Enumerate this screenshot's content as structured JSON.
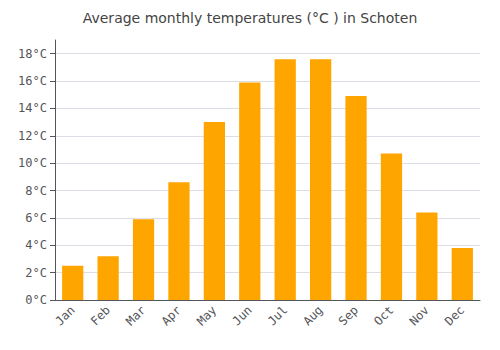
{
  "chart_data": {
    "type": "bar",
    "title": "Average monthly temperatures (°C ) in Schoten",
    "categories": [
      "Jan",
      "Feb",
      "Mar",
      "Apr",
      "May",
      "Jun",
      "Jul",
      "Aug",
      "Sep",
      "Oct",
      "Nov",
      "Dec"
    ],
    "values": [
      2.5,
      3.2,
      5.9,
      8.6,
      13.0,
      15.9,
      17.6,
      17.6,
      14.9,
      10.7,
      6.4,
      3.8
    ],
    "color": "#FFA500",
    "ylim": [
      0,
      19
    ],
    "yticks": [
      {
        "value": 0,
        "label": "0°C"
      },
      {
        "value": 2,
        "label": "2°C"
      },
      {
        "value": 4,
        "label": "4°C"
      },
      {
        "value": 6,
        "label": "6°C"
      },
      {
        "value": 8,
        "label": "8°C"
      },
      {
        "value": 10,
        "label": "10°C"
      },
      {
        "value": 12,
        "label": "12°C"
      },
      {
        "value": 14,
        "label": "14°C"
      },
      {
        "value": 16,
        "label": "16°C"
      },
      {
        "value": 18,
        "label": "18°C"
      }
    ],
    "grid": true
  }
}
